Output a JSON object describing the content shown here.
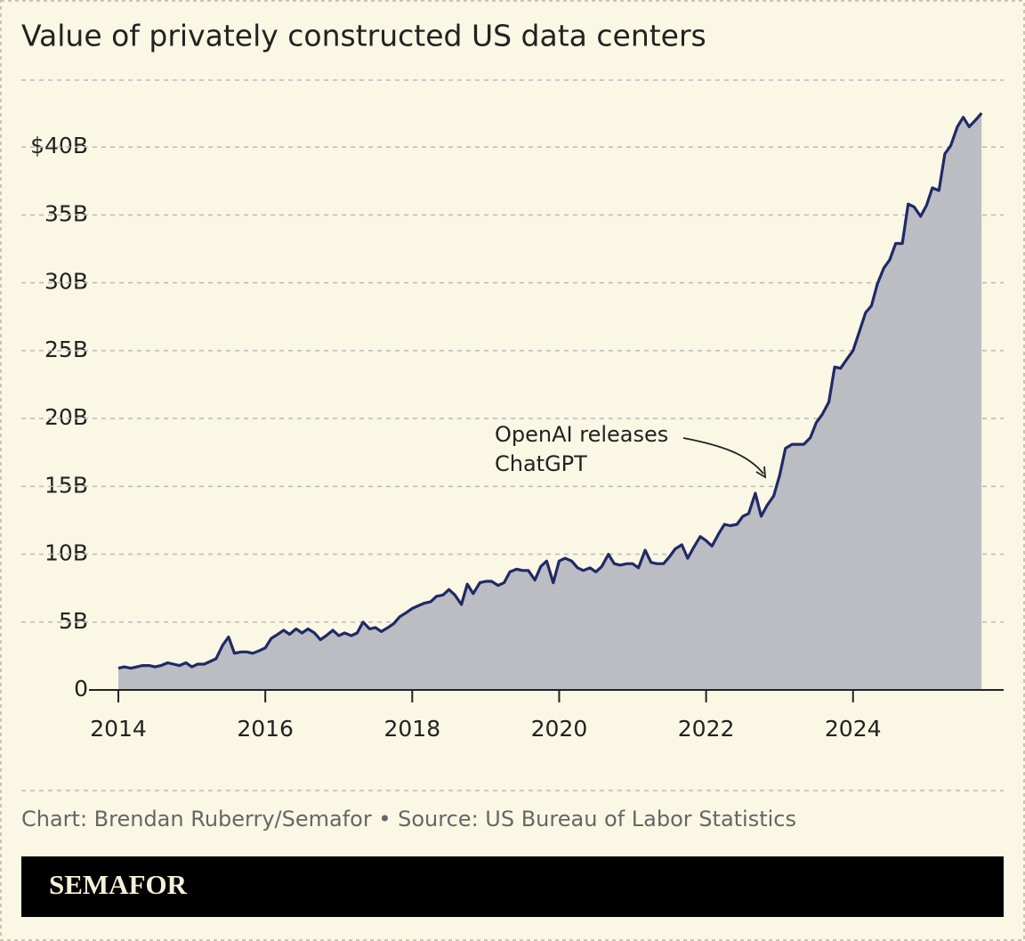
{
  "chart_data": {
    "type": "area",
    "title": "Value of privately constructed US data centers",
    "x": [
      2014,
      2014.08,
      2014.17,
      2014.25,
      2014.33,
      2014.42,
      2014.5,
      2014.58,
      2014.67,
      2014.75,
      2014.83,
      2014.92,
      2015,
      2015.08,
      2015.17,
      2015.25,
      2015.33,
      2015.42,
      2015.5,
      2015.58,
      2015.67,
      2015.75,
      2015.83,
      2015.92,
      2016,
      2016.08,
      2016.17,
      2016.25,
      2016.33,
      2016.42,
      2016.5,
      2016.58,
      2016.67,
      2016.75,
      2016.83,
      2016.92,
      2017,
      2017.08,
      2017.17,
      2017.25,
      2017.33,
      2017.42,
      2017.5,
      2017.58,
      2017.67,
      2017.75,
      2017.83,
      2017.92,
      2018,
      2018.08,
      2018.17,
      2018.25,
      2018.33,
      2018.42,
      2018.5,
      2018.58,
      2018.67,
      2018.75,
      2018.83,
      2018.92,
      2019,
      2019.08,
      2019.17,
      2019.25,
      2019.33,
      2019.42,
      2019.5,
      2019.58,
      2019.67,
      2019.75,
      2019.83,
      2019.92,
      2020,
      2020.08,
      2020.17,
      2020.25,
      2020.33,
      2020.42,
      2020.5,
      2020.58,
      2020.67,
      2020.75,
      2020.83,
      2020.92,
      2021,
      2021.08,
      2021.17,
      2021.25,
      2021.33,
      2021.42,
      2021.5,
      2021.58,
      2021.67,
      2021.75,
      2021.83,
      2021.92,
      2022,
      2022.08,
      2022.17,
      2022.25,
      2022.33,
      2022.42,
      2022.5,
      2022.58,
      2022.67,
      2022.75,
      2022.83,
      2022.92,
      2023,
      2023.08,
      2023.17,
      2023.25,
      2023.33,
      2023.42,
      2023.5,
      2023.58,
      2023.67,
      2023.75,
      2023.83,
      2023.92,
      2024,
      2024.08,
      2024.17,
      2024.25,
      2024.33,
      2024.42,
      2024.5,
      2024.58,
      2024.67,
      2024.75,
      2024.83,
      2024.92,
      2025,
      2025.08,
      2025.17,
      2025.25,
      2025.33,
      2025.42,
      2025.5,
      2025.58,
      2025.67,
      2025.75
    ],
    "values": [
      1.6,
      1.7,
      1.6,
      1.7,
      1.8,
      1.8,
      1.7,
      1.8,
      2.0,
      1.9,
      1.8,
      2.0,
      1.7,
      1.9,
      1.9,
      2.1,
      2.3,
      3.3,
      3.9,
      2.7,
      2.8,
      2.8,
      2.7,
      2.9,
      3.1,
      3.8,
      4.1,
      4.4,
      4.1,
      4.5,
      4.2,
      4.5,
      4.2,
      3.7,
      4.0,
      4.4,
      4.0,
      4.2,
      4.0,
      4.2,
      5.0,
      4.5,
      4.6,
      4.3,
      4.6,
      4.9,
      5.4,
      5.7,
      6.0,
      6.2,
      6.4,
      6.5,
      6.9,
      7.0,
      7.4,
      7.0,
      6.3,
      7.8,
      7.1,
      7.9,
      8.0,
      8.0,
      7.7,
      7.9,
      8.7,
      8.9,
      8.8,
      8.8,
      8.1,
      9.1,
      9.5,
      7.9,
      9.5,
      9.7,
      9.5,
      9.0,
      8.8,
      9.0,
      8.7,
      9.1,
      10.0,
      9.3,
      9.2,
      9.3,
      9.3,
      9.0,
      10.3,
      9.4,
      9.3,
      9.3,
      9.8,
      10.4,
      10.7,
      9.7,
      10.5,
      11.3,
      11.0,
      10.6,
      11.5,
      12.2,
      12.1,
      12.2,
      12.8,
      13.0,
      14.5,
      12.8,
      13.6,
      14.3,
      15.8,
      17.8,
      18.1,
      18.1,
      18.1,
      18.6,
      19.7,
      20.3,
      21.2,
      23.8,
      23.7,
      24.4,
      25.0,
      26.3,
      27.8,
      28.3,
      29.9,
      31.1,
      31.7,
      32.9,
      32.9,
      35.8,
      35.6,
      34.9,
      35.7,
      37.0,
      36.8,
      39.5,
      40.1,
      41.5,
      42.2,
      41.5,
      42.0,
      42.5
    ],
    "line_color": "#1f2a66",
    "fill_color": "#bcbdc3",
    "xlim": [
      2013.6,
      2026.05
    ],
    "xticks": [
      2014,
      2016,
      2018,
      2020,
      2022,
      2024
    ],
    "ylim": [
      0,
      45
    ],
    "yticks": [
      0,
      {
        "value": 5,
        "label": "5B"
      },
      {
        "value": 10,
        "label": "10B"
      },
      {
        "value": 15,
        "label": "15B"
      },
      {
        "value": 20,
        "label": "20B"
      },
      {
        "value": 25,
        "label": "25B"
      },
      {
        "value": 30,
        "label": "30B"
      },
      {
        "value": 35,
        "label": "35B"
      },
      {
        "value": 40,
        "label": "$40B"
      }
    ],
    "grid": true,
    "annotation": [
      "OpenAI releases",
      "ChatGPT"
    ],
    "source": "Chart: Brendan Ruberry/Semafor • Source: US Bureau of Labor Statistics",
    "brand": "SEMAFOR"
  }
}
